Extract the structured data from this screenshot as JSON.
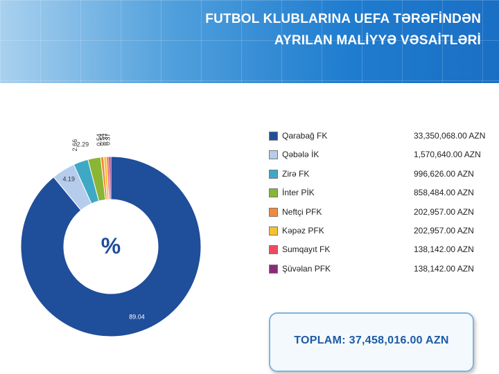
{
  "header": {
    "title_line1": "FUTBOL KLUBLARINA UEFA TƏRƏFİNDƏN",
    "title_line2": "AYRILAN MALİYYƏ VƏSAİTLƏRİ"
  },
  "chart_data": {
    "type": "pie",
    "variant": "donut",
    "center_label": "%",
    "categories": [
      "Qarabağ FK",
      "Qəbələ İK",
      "Zirə FK",
      "İnter PİK",
      "Neftçi PFK",
      "Kəpəz PFK",
      "Sumqayıt FK",
      "Şüvəlan PFK"
    ],
    "values": [
      89.04,
      4.19,
      2.66,
      2.29,
      0.54,
      0.54,
      0.37,
      0.37
    ],
    "slice_labels": [
      "89.04",
      "4.19",
      "2.66",
      "2.29",
      "0.54",
      "0.54",
      "0.37",
      "0.37"
    ],
    "colors": [
      "#1f4e9a",
      "#b5ccec",
      "#3fa9c5",
      "#8bb534",
      "#f28a3d",
      "#f5c12e",
      "#ec4b62",
      "#8b2a7c"
    ],
    "legend_placement": "right"
  },
  "legend": [
    {
      "name": "Qarabağ FK",
      "amount": "33,350,068.00 AZN",
      "color": "#1f4e9a"
    },
    {
      "name": "Qəbələ İK",
      "amount": "1,570,640.00 AZN",
      "color": "#b5ccec"
    },
    {
      "name": "Zirə FK",
      "amount": "996,626.00 AZN",
      "color": "#3fa9c5"
    },
    {
      "name": "İnter PİK",
      "amount": "858,484.00 AZN",
      "color": "#8bb534"
    },
    {
      "name": "Neftçi PFK",
      "amount": "202,957.00 AZN",
      "color": "#f28a3d"
    },
    {
      "name": "Kəpəz PFK",
      "amount": "202,957.00 AZN",
      "color": "#f5c12e"
    },
    {
      "name": "Sumqayıt FK",
      "amount": "138,142.00 AZN",
      "color": "#ec4b62"
    },
    {
      "name": "Şüvəlan PFK",
      "amount": "138,142.00 AZN",
      "color": "#8b2a7c"
    }
  ],
  "total": {
    "text": "TOPLAM: 37,458,016.00  AZN"
  }
}
